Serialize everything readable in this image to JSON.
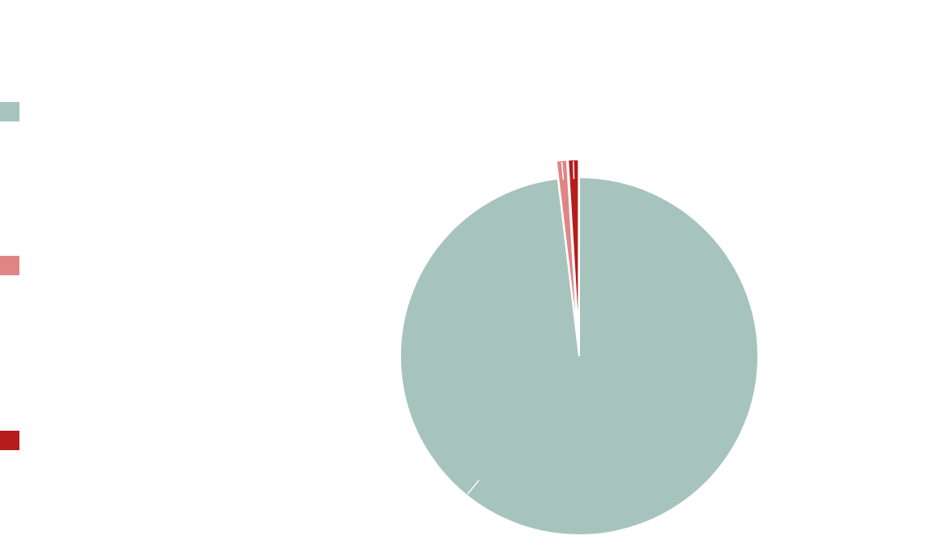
{
  "chart_data": {
    "type": "pie",
    "title": "",
    "legend_position": "left",
    "slices": [
      {
        "label": "",
        "value": 98.1,
        "color": "#a6c4bd",
        "exploded": false
      },
      {
        "label": "",
        "value": 0.95,
        "color": "#e08585",
        "exploded": true
      },
      {
        "label": "",
        "value": 0.95,
        "color": "#b71c1c",
        "exploded": true
      }
    ],
    "start_angle_deg": 0,
    "direction": "clockwise"
  }
}
